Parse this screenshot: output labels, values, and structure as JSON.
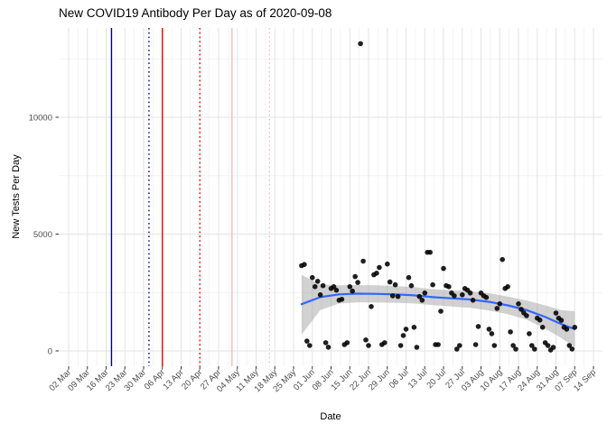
{
  "title": "New COVID19 Antibody Per Day as of 2020-09-08",
  "chart_data": {
    "type": "scatter",
    "title": "New COVID19 Antibody Per Day as of 2020-09-08",
    "xlabel": "Date",
    "ylabel": "New Tests Per Day",
    "x_tick_labels": [
      "02 Mar",
      "09 Mar",
      "16 Mar",
      "23 Mar",
      "30 Mar",
      "06 Apr",
      "13 Apr",
      "20 Apr",
      "27 Apr",
      "04 May",
      "11 May",
      "18 May",
      "25 May",
      "01 Jun",
      "08 Jun",
      "15 Jun",
      "22 Jun",
      "29 Jun",
      "06 Jul",
      "13 Jul",
      "20 Jul",
      "27 Jul",
      "03 Aug",
      "10 Aug",
      "17 Aug",
      "24 Aug",
      "31 Aug",
      "07 Sep",
      "14 Sep"
    ],
    "x_tick_start_date": "2020-03-02",
    "x_tick_interval_days": 7,
    "y_ticks": [
      0,
      5000,
      10000
    ],
    "y_minor_ticks": [
      2500,
      7500,
      12500
    ],
    "ylim": [
      -650,
      13850
    ],
    "grid": true,
    "legend": "none",
    "colors": {
      "point": "#000000",
      "smooth_line": "#3366FF",
      "ribbon": "rgba(153,153,153,0.45)",
      "grid_major": "#e3e3e3",
      "grid_minor": "#efefef",
      "axis_text": "#4d4d4d",
      "tick_mark": "#333333"
    },
    "event_lines": [
      {
        "date": "2020-03-18",
        "color": "#00008B",
        "style": "solid"
      },
      {
        "date": "2020-04-01",
        "color": "#00008B",
        "style": "dotted"
      },
      {
        "date": "2020-04-06",
        "color": "#EE0000",
        "style": "solid"
      },
      {
        "date": "2020-04-20",
        "color": "#EE0000",
        "style": "dotted"
      },
      {
        "date": "2020-05-02",
        "color": "#FFB6C1",
        "style": "solid"
      },
      {
        "date": "2020-05-16",
        "color": "#FFB6C1",
        "style": "dotted"
      }
    ],
    "points": [
      {
        "date": "2020-05-28",
        "value": 3650
      },
      {
        "date": "2020-05-29",
        "value": 3700
      },
      {
        "date": "2020-05-30",
        "value": 420
      },
      {
        "date": "2020-05-31",
        "value": 230
      },
      {
        "date": "2020-06-01",
        "value": 3140
      },
      {
        "date": "2020-06-02",
        "value": 2750
      },
      {
        "date": "2020-06-03",
        "value": 2980
      },
      {
        "date": "2020-06-04",
        "value": 2400
      },
      {
        "date": "2020-06-05",
        "value": 2790
      },
      {
        "date": "2020-06-06",
        "value": 350
      },
      {
        "date": "2020-06-07",
        "value": 160
      },
      {
        "date": "2020-06-08",
        "value": 2670
      },
      {
        "date": "2020-06-09",
        "value": 2750
      },
      {
        "date": "2020-06-10",
        "value": 2600
      },
      {
        "date": "2020-06-11",
        "value": 2170
      },
      {
        "date": "2020-06-12",
        "value": 2210
      },
      {
        "date": "2020-06-13",
        "value": 270
      },
      {
        "date": "2020-06-14",
        "value": 350
      },
      {
        "date": "2020-06-15",
        "value": 2750
      },
      {
        "date": "2020-06-16",
        "value": 2560
      },
      {
        "date": "2020-06-17",
        "value": 3180
      },
      {
        "date": "2020-06-18",
        "value": 2930
      },
      {
        "date": "2020-06-19",
        "value": 13150
      },
      {
        "date": "2020-06-20",
        "value": 3840
      },
      {
        "date": "2020-06-21",
        "value": 470
      },
      {
        "date": "2020-06-22",
        "value": 230
      },
      {
        "date": "2020-06-23",
        "value": 1900
      },
      {
        "date": "2020-06-24",
        "value": 3260
      },
      {
        "date": "2020-06-25",
        "value": 3330
      },
      {
        "date": "2020-06-26",
        "value": 3570
      },
      {
        "date": "2020-06-27",
        "value": 270
      },
      {
        "date": "2020-06-28",
        "value": 350
      },
      {
        "date": "2020-06-29",
        "value": 3720
      },
      {
        "date": "2020-06-30",
        "value": 2950
      },
      {
        "date": "2020-07-01",
        "value": 2360
      },
      {
        "date": "2020-07-02",
        "value": 2830
      },
      {
        "date": "2020-07-03",
        "value": 2330
      },
      {
        "date": "2020-07-04",
        "value": 230
      },
      {
        "date": "2020-07-05",
        "value": 660
      },
      {
        "date": "2020-07-06",
        "value": 930
      },
      {
        "date": "2020-07-07",
        "value": 3140
      },
      {
        "date": "2020-07-08",
        "value": 2790
      },
      {
        "date": "2020-07-09",
        "value": 1010
      },
      {
        "date": "2020-07-10",
        "value": 155
      },
      {
        "date": "2020-07-11",
        "value": 2330
      },
      {
        "date": "2020-07-12",
        "value": 2170
      },
      {
        "date": "2020-07-13",
        "value": 2480
      },
      {
        "date": "2020-07-14",
        "value": 4220
      },
      {
        "date": "2020-07-15",
        "value": 4220
      },
      {
        "date": "2020-07-16",
        "value": 2830
      },
      {
        "date": "2020-07-17",
        "value": 271
      },
      {
        "date": "2020-07-18",
        "value": 271
      },
      {
        "date": "2020-07-19",
        "value": 1700
      },
      {
        "date": "2020-07-20",
        "value": 3530
      },
      {
        "date": "2020-07-21",
        "value": 2790
      },
      {
        "date": "2020-07-22",
        "value": 2750
      },
      {
        "date": "2020-07-23",
        "value": 2480
      },
      {
        "date": "2020-07-24",
        "value": 2360
      },
      {
        "date": "2020-07-25",
        "value": 78
      },
      {
        "date": "2020-07-26",
        "value": 232
      },
      {
        "date": "2020-07-27",
        "value": 2400
      },
      {
        "date": "2020-07-28",
        "value": 2670
      },
      {
        "date": "2020-07-29",
        "value": 2600
      },
      {
        "date": "2020-07-30",
        "value": 2480
      },
      {
        "date": "2020-07-31",
        "value": 2170
      },
      {
        "date": "2020-08-01",
        "value": 271
      },
      {
        "date": "2020-08-02",
        "value": 1047
      },
      {
        "date": "2020-08-03",
        "value": 2480
      },
      {
        "date": "2020-08-04",
        "value": 2360
      },
      {
        "date": "2020-08-05",
        "value": 2290
      },
      {
        "date": "2020-08-06",
        "value": 930
      },
      {
        "date": "2020-08-07",
        "value": 736
      },
      {
        "date": "2020-08-08",
        "value": 232
      },
      {
        "date": "2020-08-09",
        "value": 1820
      },
      {
        "date": "2020-08-10",
        "value": 2016
      },
      {
        "date": "2020-08-11",
        "value": 3910
      },
      {
        "date": "2020-08-12",
        "value": 2670
      },
      {
        "date": "2020-08-13",
        "value": 2750
      },
      {
        "date": "2020-08-14",
        "value": 814
      },
      {
        "date": "2020-08-15",
        "value": 232
      },
      {
        "date": "2020-08-16",
        "value": 78
      },
      {
        "date": "2020-08-17",
        "value": 2016
      },
      {
        "date": "2020-08-18",
        "value": 1780
      },
      {
        "date": "2020-08-19",
        "value": 1630
      },
      {
        "date": "2020-08-20",
        "value": 1510
      },
      {
        "date": "2020-08-21",
        "value": 736
      },
      {
        "date": "2020-08-22",
        "value": 232
      },
      {
        "date": "2020-08-23",
        "value": 78
      },
      {
        "date": "2020-08-24",
        "value": 1400
      },
      {
        "date": "2020-08-25",
        "value": 1320
      },
      {
        "date": "2020-08-26",
        "value": 1010
      },
      {
        "date": "2020-08-27",
        "value": 350
      },
      {
        "date": "2020-08-28",
        "value": 232
      },
      {
        "date": "2020-08-29",
        "value": 39
      },
      {
        "date": "2020-08-30",
        "value": 150
      },
      {
        "date": "2020-08-31",
        "value": 1620
      },
      {
        "date": "2020-09-01",
        "value": 1400
      },
      {
        "date": "2020-09-02",
        "value": 1310
      },
      {
        "date": "2020-09-03",
        "value": 1010
      },
      {
        "date": "2020-09-04",
        "value": 930
      },
      {
        "date": "2020-09-05",
        "value": 230
      },
      {
        "date": "2020-09-06",
        "value": 80
      },
      {
        "date": "2020-09-07",
        "value": 1010
      }
    ],
    "smooth": [
      {
        "date": "2020-05-28",
        "value": 2000,
        "lo": 700,
        "hi": 3250
      },
      {
        "date": "2020-06-04",
        "value": 2300,
        "lo": 1750,
        "hi": 2850
      },
      {
        "date": "2020-06-11",
        "value": 2420,
        "lo": 2030,
        "hi": 2810
      },
      {
        "date": "2020-06-18",
        "value": 2450,
        "lo": 2080,
        "hi": 2820
      },
      {
        "date": "2020-06-25",
        "value": 2440,
        "lo": 2070,
        "hi": 2810
      },
      {
        "date": "2020-07-02",
        "value": 2420,
        "lo": 2060,
        "hi": 2780
      },
      {
        "date": "2020-07-09",
        "value": 2380,
        "lo": 2030,
        "hi": 2730
      },
      {
        "date": "2020-07-16",
        "value": 2300,
        "lo": 1960,
        "hi": 2640
      },
      {
        "date": "2020-07-23",
        "value": 2250,
        "lo": 1900,
        "hi": 2600
      },
      {
        "date": "2020-07-30",
        "value": 2200,
        "lo": 1840,
        "hi": 2560
      },
      {
        "date": "2020-08-06",
        "value": 2100,
        "lo": 1730,
        "hi": 2470
      },
      {
        "date": "2020-08-13",
        "value": 1950,
        "lo": 1570,
        "hi": 2330
      },
      {
        "date": "2020-08-20",
        "value": 1750,
        "lo": 1340,
        "hi": 2160
      },
      {
        "date": "2020-08-27",
        "value": 1450,
        "lo": 950,
        "hi": 1950
      },
      {
        "date": "2020-09-02",
        "value": 1150,
        "lo": 550,
        "hi": 1750
      },
      {
        "date": "2020-09-07",
        "value": 930,
        "lo": 160,
        "hi": 1700
      }
    ]
  }
}
